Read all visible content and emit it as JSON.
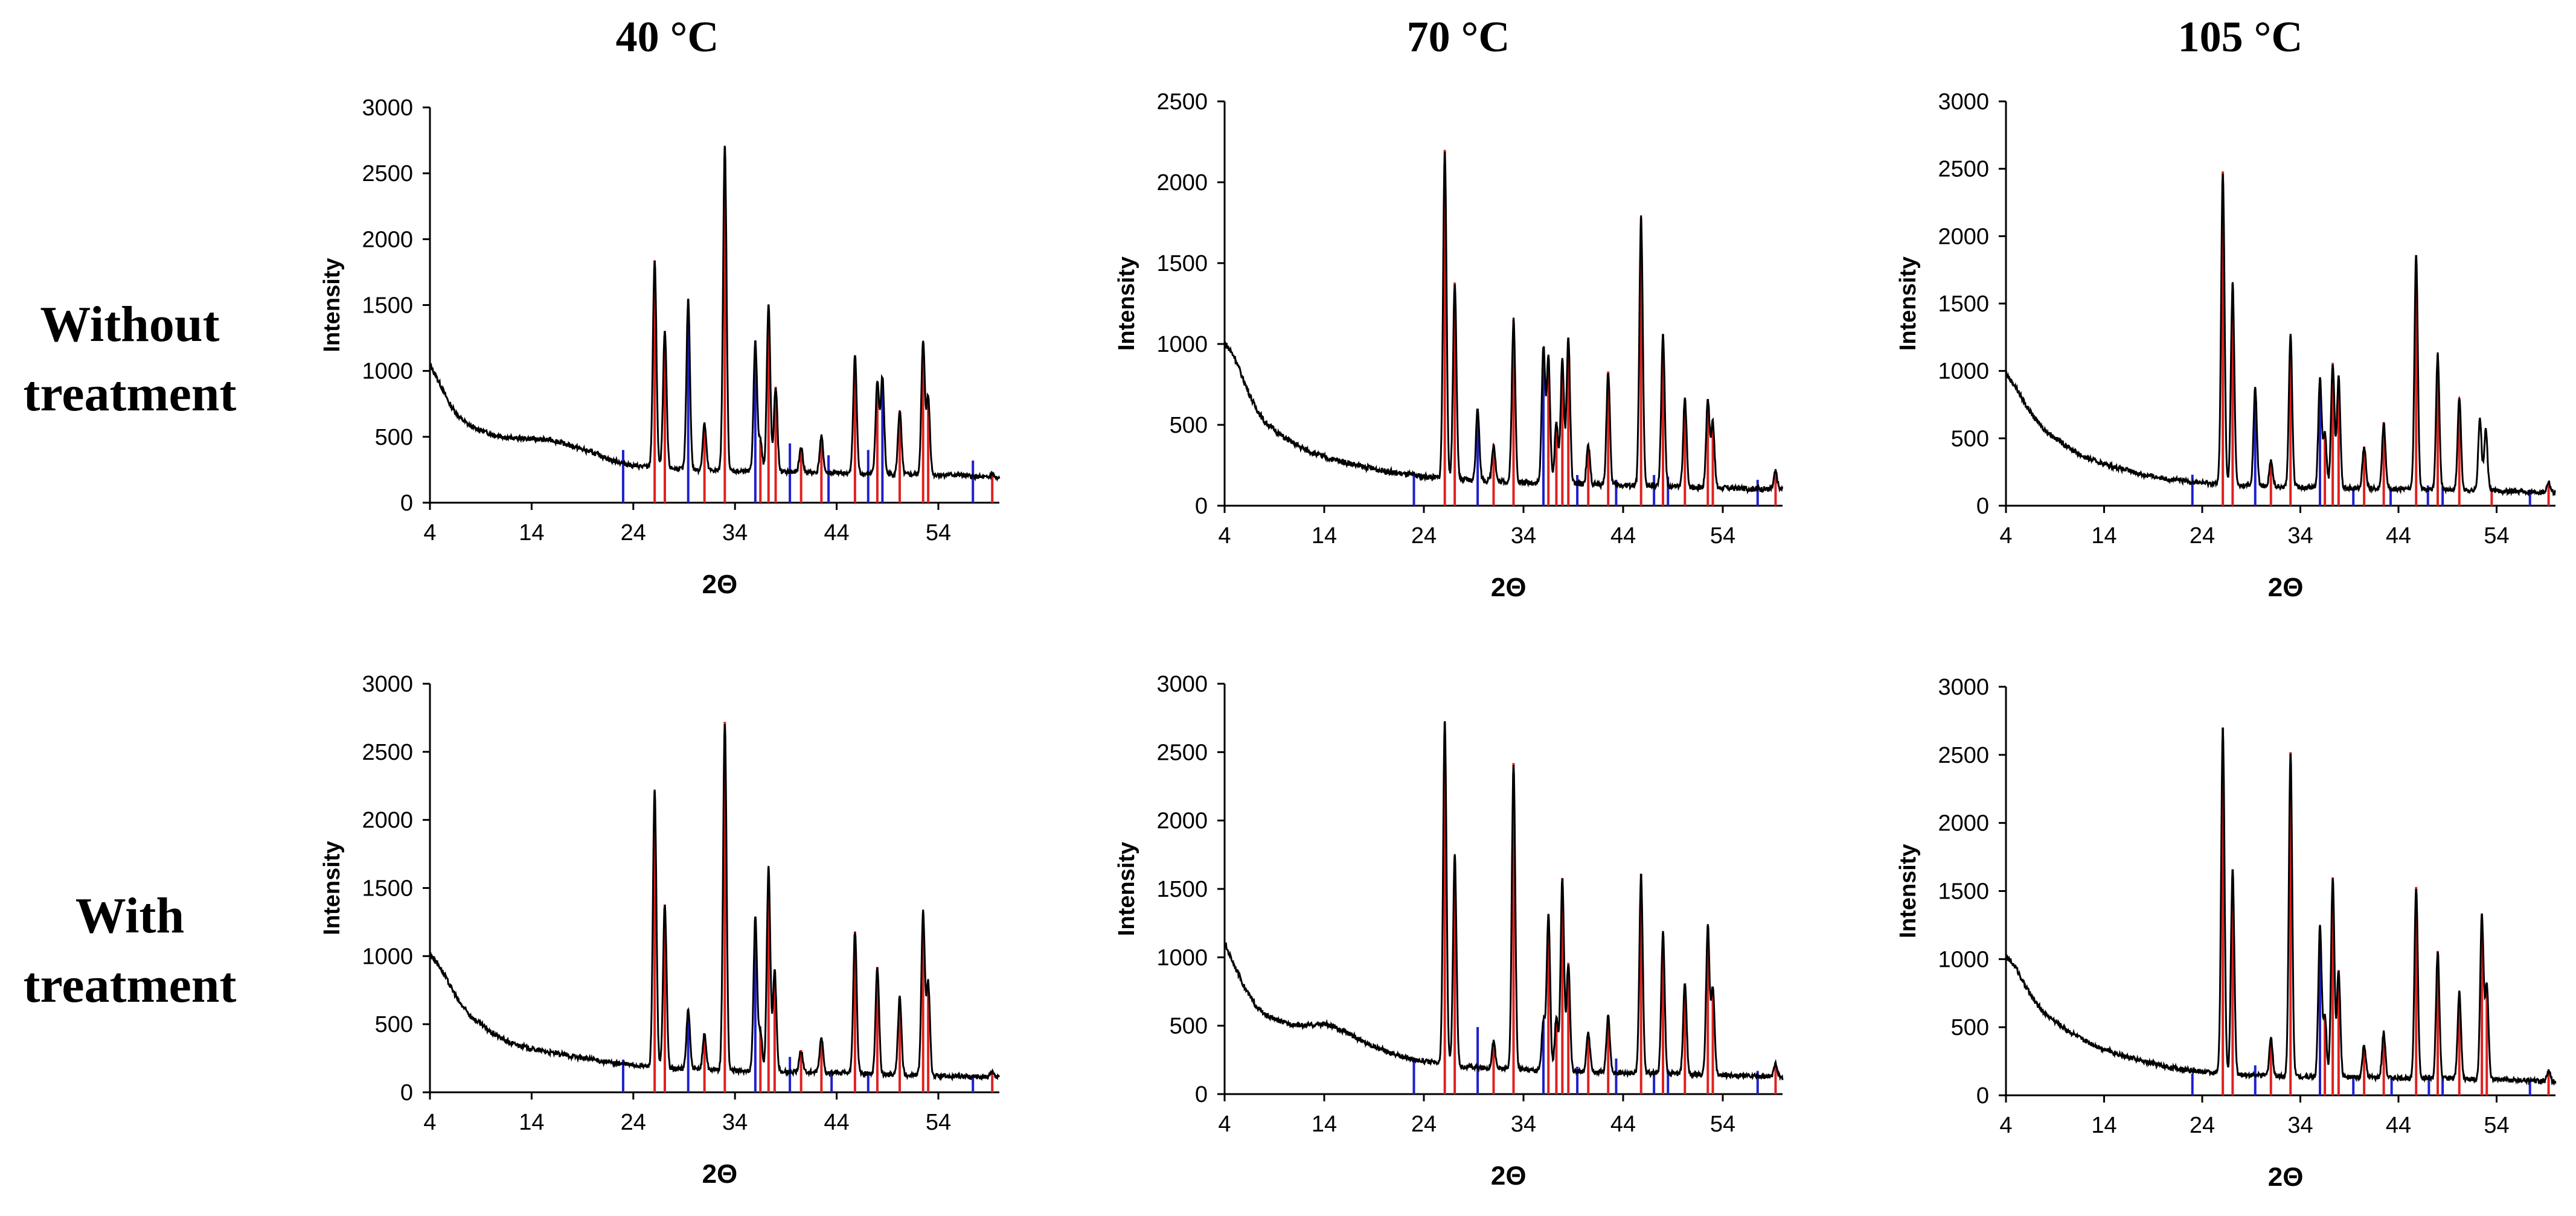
{
  "column_titles": [
    "40 °C",
    "70 °C",
    "105 °C"
  ],
  "row_titles": [
    {
      "line1": "Without",
      "line2": "treatment"
    },
    {
      "line1": "With",
      "line2": "treatment"
    }
  ],
  "colors": {
    "red_reference": "#e02020",
    "blue_reference": "#1f1fd0",
    "pattern": "#000000"
  },
  "chart_data": [
    {
      "type": "line",
      "id": "c0",
      "row": "Without treatment",
      "column": "40 °C",
      "xlabel": "2Θ",
      "ylabel": "Intensity",
      "xlim": [
        4,
        60
      ],
      "ylim": [
        0,
        3000
      ],
      "xticks": [
        4,
        14,
        24,
        34,
        44,
        54
      ],
      "yticks": [
        0,
        500,
        1000,
        1500,
        2000,
        2500,
        3000
      ],
      "background": [
        [
          4,
          1050
        ],
        [
          5,
          900
        ],
        [
          6,
          740
        ],
        [
          7,
          640
        ],
        [
          8,
          580
        ],
        [
          10,
          520
        ],
        [
          12,
          490
        ],
        [
          14,
          485
        ],
        [
          16,
          475
        ],
        [
          18,
          430
        ],
        [
          20,
          380
        ],
        [
          22,
          320
        ],
        [
          24,
          280
        ],
        [
          26,
          270
        ],
        [
          30,
          250
        ],
        [
          34,
          240
        ],
        [
          38,
          235
        ],
        [
          44,
          225
        ],
        [
          50,
          215
        ],
        [
          56,
          210
        ],
        [
          60,
          180
        ]
      ],
      "red_lines": [
        {
          "x": 26.1,
          "y": 1840
        },
        {
          "x": 27.1,
          "y": 1300
        },
        {
          "x": 31.0,
          "y": 600
        },
        {
          "x": 33.0,
          "y": 2700
        },
        {
          "x": 36.5,
          "y": 480
        },
        {
          "x": 37.3,
          "y": 1500
        },
        {
          "x": 38.0,
          "y": 880
        },
        {
          "x": 40.5,
          "y": 420
        },
        {
          "x": 42.5,
          "y": 500
        },
        {
          "x": 45.8,
          "y": 1120
        },
        {
          "x": 48.0,
          "y": 920
        },
        {
          "x": 50.2,
          "y": 700
        },
        {
          "x": 52.5,
          "y": 1220
        },
        {
          "x": 53.0,
          "y": 800
        },
        {
          "x": 59.3,
          "y": 220
        }
      ],
      "blue_lines": [
        {
          "x": 23.0,
          "y": 400
        },
        {
          "x": 29.4,
          "y": 1540
        },
        {
          "x": 36.0,
          "y": 1230
        },
        {
          "x": 39.4,
          "y": 450
        },
        {
          "x": 43.2,
          "y": 360
        },
        {
          "x": 47.1,
          "y": 400
        },
        {
          "x": 48.5,
          "y": 950
        },
        {
          "x": 57.4,
          "y": 320
        }
      ]
    },
    {
      "type": "line",
      "id": "c1",
      "row": "Without treatment",
      "column": "70 °C",
      "xlabel": "2Θ",
      "ylabel": "Intensity",
      "xlim": [
        4,
        60
      ],
      "ylim": [
        0,
        2500
      ],
      "xticks": [
        4,
        14,
        24,
        34,
        44,
        54
      ],
      "yticks": [
        0,
        500,
        1000,
        1500,
        2000,
        2500
      ],
      "background": [
        [
          4,
          1010
        ],
        [
          5,
          920
        ],
        [
          6,
          760
        ],
        [
          7,
          620
        ],
        [
          8,
          520
        ],
        [
          10,
          420
        ],
        [
          12,
          350
        ],
        [
          14,
          300
        ],
        [
          16,
          270
        ],
        [
          18,
          240
        ],
        [
          20,
          215
        ],
        [
          22,
          195
        ],
        [
          24,
          180
        ],
        [
          28,
          160
        ],
        [
          34,
          145
        ],
        [
          40,
          135
        ],
        [
          48,
          120
        ],
        [
          54,
          110
        ],
        [
          60,
          100
        ]
      ],
      "red_lines": [
        {
          "x": 26.1,
          "y": 2200
        },
        {
          "x": 27.1,
          "y": 1380
        },
        {
          "x": 31.0,
          "y": 380
        },
        {
          "x": 33.0,
          "y": 1150
        },
        {
          "x": 36.5,
          "y": 920
        },
        {
          "x": 37.3,
          "y": 520
        },
        {
          "x": 37.9,
          "y": 900
        },
        {
          "x": 38.5,
          "y": 1040
        },
        {
          "x": 40.5,
          "y": 370
        },
        {
          "x": 42.5,
          "y": 830
        },
        {
          "x": 45.8,
          "y": 1780
        },
        {
          "x": 48.0,
          "y": 1060
        },
        {
          "x": 50.2,
          "y": 660
        },
        {
          "x": 52.5,
          "y": 660
        },
        {
          "x": 53.0,
          "y": 520
        },
        {
          "x": 59.3,
          "y": 210
        }
      ],
      "blue_lines": [
        {
          "x": 23.0,
          "y": 210
        },
        {
          "x": 29.4,
          "y": 600
        },
        {
          "x": 36.0,
          "y": 980
        },
        {
          "x": 39.4,
          "y": 190
        },
        {
          "x": 43.3,
          "y": 160
        },
        {
          "x": 47.1,
          "y": 190
        },
        {
          "x": 48.5,
          "y": 180
        },
        {
          "x": 57.5,
          "y": 160
        }
      ]
    },
    {
      "type": "line",
      "id": "c2",
      "row": "Without treatment",
      "column": "105 °C",
      "xlabel": "2Θ",
      "ylabel": "Intensity",
      "xlim": [
        4,
        60
      ],
      "ylim": [
        0,
        3000
      ],
      "xticks": [
        4,
        14,
        24,
        34,
        44,
        54
      ],
      "yticks": [
        0,
        500,
        1000,
        1500,
        2000,
        2500,
        3000
      ],
      "background": [
        [
          4,
          980
        ],
        [
          5,
          880
        ],
        [
          6,
          750
        ],
        [
          7,
          640
        ],
        [
          8,
          560
        ],
        [
          10,
          450
        ],
        [
          12,
          360
        ],
        [
          14,
          310
        ],
        [
          16,
          270
        ],
        [
          18,
          230
        ],
        [
          20,
          205
        ],
        [
          22,
          185
        ],
        [
          24,
          170
        ],
        [
          28,
          150
        ],
        [
          34,
          140
        ],
        [
          40,
          130
        ],
        [
          48,
          120
        ],
        [
          54,
          110
        ],
        [
          60,
          100
        ]
      ],
      "red_lines": [
        {
          "x": 26.1,
          "y": 2480
        },
        {
          "x": 27.1,
          "y": 1650
        },
        {
          "x": 31.0,
          "y": 330
        },
        {
          "x": 33.0,
          "y": 1260
        },
        {
          "x": 36.5,
          "y": 540
        },
        {
          "x": 37.3,
          "y": 1060
        },
        {
          "x": 37.9,
          "y": 960
        },
        {
          "x": 40.5,
          "y": 440
        },
        {
          "x": 42.5,
          "y": 620
        },
        {
          "x": 45.8,
          "y": 1860
        },
        {
          "x": 48.0,
          "y": 1120
        },
        {
          "x": 50.2,
          "y": 800
        },
        {
          "x": 53.5,
          "y": 120
        },
        {
          "x": 59.3,
          "y": 180
        }
      ],
      "blue_lines": [
        {
          "x": 23.0,
          "y": 230
        },
        {
          "x": 29.4,
          "y": 870
        },
        {
          "x": 36.0,
          "y": 940
        },
        {
          "x": 39.4,
          "y": 140
        },
        {
          "x": 43.2,
          "y": 120
        },
        {
          "x": 47.0,
          "y": 150
        },
        {
          "x": 48.5,
          "y": 140
        },
        {
          "x": 57.4,
          "y": 120
        }
      ],
      "extra_peaks": [
        {
          "x": 52.3,
          "y": 640
        },
        {
          "x": 52.9,
          "y": 560
        }
      ]
    },
    {
      "type": "line",
      "id": "c3",
      "row": "With treatment",
      "column": "40 °C",
      "xlabel": "2Θ",
      "ylabel": "Intensity",
      "xlim": [
        4,
        60
      ],
      "ylim": [
        0,
        3000
      ],
      "xticks": [
        4,
        14,
        24,
        34,
        44,
        54
      ],
      "yticks": [
        0,
        500,
        1000,
        1500,
        2000,
        2500,
        3000
      ],
      "background": [
        [
          4,
          1020
        ],
        [
          5,
          920
        ],
        [
          6,
          780
        ],
        [
          7,
          650
        ],
        [
          8,
          560
        ],
        [
          10,
          440
        ],
        [
          12,
          360
        ],
        [
          14,
          320
        ],
        [
          16,
          290
        ],
        [
          18,
          265
        ],
        [
          20,
          240
        ],
        [
          22,
          215
        ],
        [
          24,
          200
        ],
        [
          28,
          175
        ],
        [
          34,
          160
        ],
        [
          40,
          150
        ],
        [
          48,
          135
        ],
        [
          54,
          120
        ],
        [
          60,
          110
        ]
      ],
      "red_lines": [
        {
          "x": 26.1,
          "y": 2210
        },
        {
          "x": 27.1,
          "y": 1380
        },
        {
          "x": 31.0,
          "y": 430
        },
        {
          "x": 33.0,
          "y": 2720
        },
        {
          "x": 36.5,
          "y": 450
        },
        {
          "x": 37.3,
          "y": 1650
        },
        {
          "x": 37.9,
          "y": 900
        },
        {
          "x": 40.5,
          "y": 310
        },
        {
          "x": 42.5,
          "y": 400
        },
        {
          "x": 45.8,
          "y": 1180
        },
        {
          "x": 48.0,
          "y": 920
        },
        {
          "x": 50.2,
          "y": 700
        },
        {
          "x": 52.5,
          "y": 1320
        },
        {
          "x": 53.0,
          "y": 800
        },
        {
          "x": 59.3,
          "y": 140
        }
      ],
      "blue_lines": [
        {
          "x": 23.0,
          "y": 240
        },
        {
          "x": 29.4,
          "y": 610
        },
        {
          "x": 36.0,
          "y": 1290
        },
        {
          "x": 39.4,
          "y": 260
        },
        {
          "x": 43.5,
          "y": 150
        },
        {
          "x": 47.1,
          "y": 140
        },
        {
          "x": 57.4,
          "y": 130
        }
      ]
    },
    {
      "type": "line",
      "id": "c4",
      "row": "With treatment",
      "column": "70 °C",
      "xlabel": "2Θ",
      "ylabel": "Intensity",
      "xlim": [
        4,
        60
      ],
      "ylim": [
        0,
        3000
      ],
      "xticks": [
        4,
        14,
        24,
        34,
        44,
        54
      ],
      "yticks": [
        0,
        500,
        1000,
        1500,
        2000,
        2500,
        3000
      ],
      "background": [
        [
          4,
          1100
        ],
        [
          5,
          940
        ],
        [
          6,
          780
        ],
        [
          7,
          660
        ],
        [
          8,
          580
        ],
        [
          10,
          520
        ],
        [
          12,
          500
        ],
        [
          14,
          515
        ],
        [
          16,
          460
        ],
        [
          18,
          380
        ],
        [
          20,
          320
        ],
        [
          22,
          270
        ],
        [
          24,
          240
        ],
        [
          28,
          200
        ],
        [
          34,
          180
        ],
        [
          40,
          165
        ],
        [
          48,
          150
        ],
        [
          54,
          140
        ],
        [
          60,
          120
        ]
      ],
      "red_lines": [
        {
          "x": 26.1,
          "y": 2720
        },
        {
          "x": 27.1,
          "y": 1740
        },
        {
          "x": 31.0,
          "y": 380
        },
        {
          "x": 33.0,
          "y": 2420
        },
        {
          "x": 36.5,
          "y": 1310
        },
        {
          "x": 37.3,
          "y": 560
        },
        {
          "x": 37.9,
          "y": 1580
        },
        {
          "x": 38.5,
          "y": 960
        },
        {
          "x": 40.5,
          "y": 450
        },
        {
          "x": 42.5,
          "y": 570
        },
        {
          "x": 45.8,
          "y": 1610
        },
        {
          "x": 48.0,
          "y": 1180
        },
        {
          "x": 50.2,
          "y": 810
        },
        {
          "x": 52.5,
          "y": 1230
        },
        {
          "x": 53.0,
          "y": 780
        },
        {
          "x": 59.3,
          "y": 230
        }
      ],
      "blue_lines": [
        {
          "x": 23.0,
          "y": 250
        },
        {
          "x": 29.4,
          "y": 490
        },
        {
          "x": 36.0,
          "y": 540
        },
        {
          "x": 39.4,
          "y": 200
        },
        {
          "x": 43.3,
          "y": 260
        },
        {
          "x": 47.1,
          "y": 160
        },
        {
          "x": 48.5,
          "y": 180
        },
        {
          "x": 57.5,
          "y": 170
        }
      ]
    },
    {
      "type": "line",
      "id": "c5",
      "row": "With treatment",
      "column": "105 °C",
      "xlabel": "2Θ",
      "ylabel": "Intensity",
      "xlim": [
        4,
        60
      ],
      "ylim": [
        0,
        3000
      ],
      "xticks": [
        4,
        14,
        24,
        34,
        44,
        54
      ],
      "yticks": [
        0,
        500,
        1000,
        1500,
        2000,
        2500,
        3000
      ],
      "background": [
        [
          4,
          1020
        ],
        [
          5,
          940
        ],
        [
          6,
          800
        ],
        [
          7,
          680
        ],
        [
          8,
          600
        ],
        [
          10,
          490
        ],
        [
          12,
          400
        ],
        [
          14,
          340
        ],
        [
          16,
          290
        ],
        [
          18,
          250
        ],
        [
          20,
          215
        ],
        [
          22,
          190
        ],
        [
          24,
          175
        ],
        [
          28,
          150
        ],
        [
          34,
          140
        ],
        [
          40,
          130
        ],
        [
          48,
          125
        ],
        [
          54,
          115
        ],
        [
          60,
          100
        ]
      ],
      "red_lines": [
        {
          "x": 26.1,
          "y": 2700
        },
        {
          "x": 27.1,
          "y": 1660
        },
        {
          "x": 31.0,
          "y": 420
        },
        {
          "x": 33.0,
          "y": 2520
        },
        {
          "x": 36.5,
          "y": 580
        },
        {
          "x": 37.3,
          "y": 1600
        },
        {
          "x": 37.9,
          "y": 920
        },
        {
          "x": 40.5,
          "y": 370
        },
        {
          "x": 42.5,
          "y": 460
        },
        {
          "x": 45.8,
          "y": 1530
        },
        {
          "x": 48.0,
          "y": 1060
        },
        {
          "x": 50.2,
          "y": 760
        },
        {
          "x": 52.5,
          "y": 1330
        },
        {
          "x": 53.0,
          "y": 820
        },
        {
          "x": 59.3,
          "y": 180
        }
      ],
      "blue_lines": [
        {
          "x": 23.0,
          "y": 160
        },
        {
          "x": 29.4,
          "y": 220
        },
        {
          "x": 36.0,
          "y": 1240
        },
        {
          "x": 39.4,
          "y": 150
        },
        {
          "x": 43.3,
          "y": 130
        },
        {
          "x": 47.1,
          "y": 150
        },
        {
          "x": 48.5,
          "y": 140
        },
        {
          "x": 57.4,
          "y": 110
        }
      ]
    }
  ]
}
